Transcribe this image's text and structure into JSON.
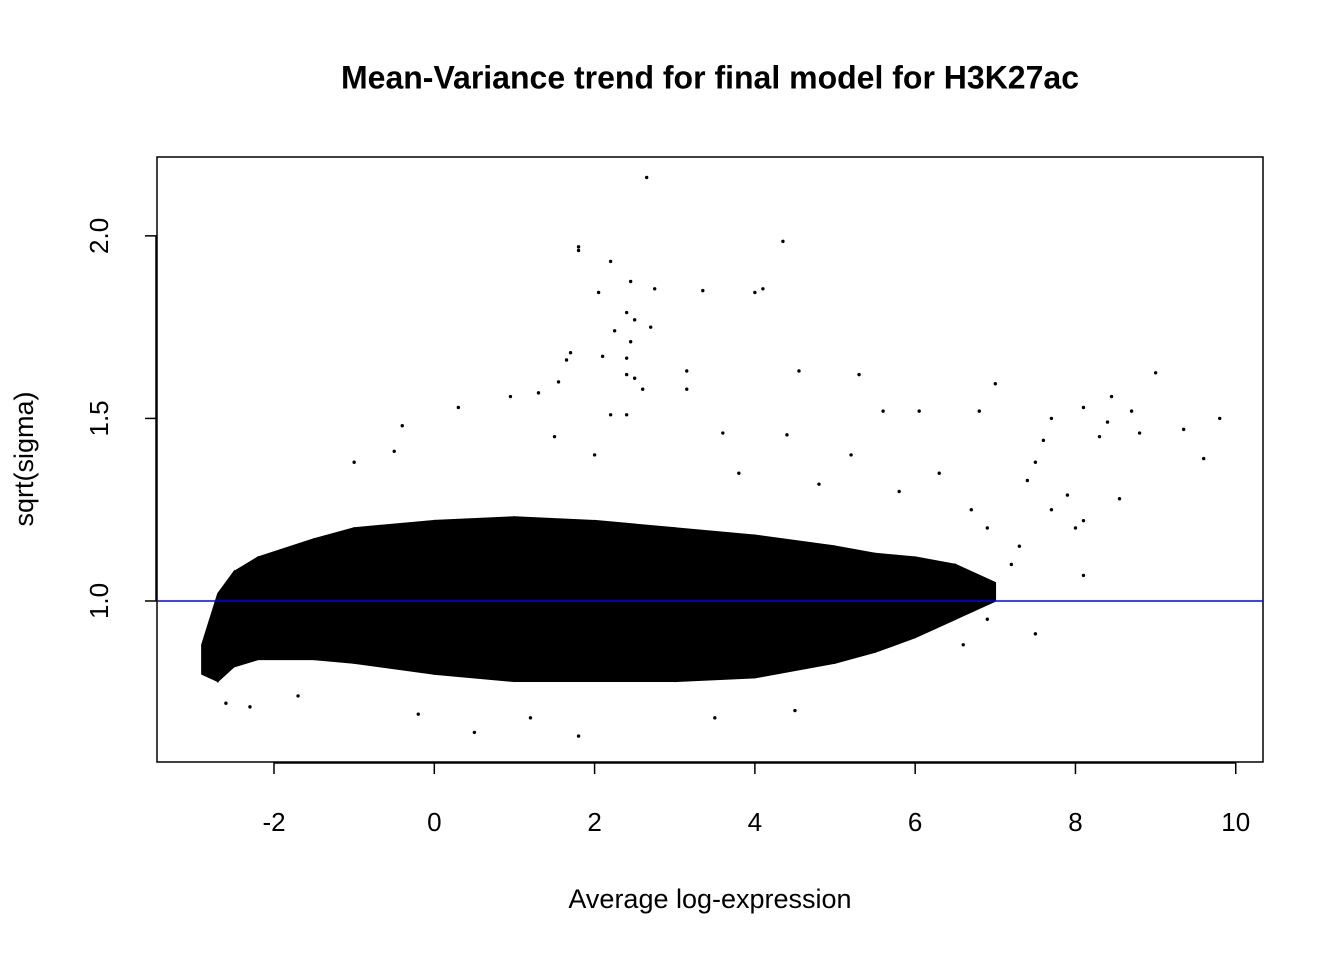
{
  "chart_data": {
    "type": "scatter",
    "title": "Mean-Variance trend for final model for H3K27ac",
    "x_label": "Average log-expression",
    "y_label": "sqrt(sigma)",
    "xlim": [
      -3.46,
      10.34
    ],
    "ylim": [
      0.559,
      2.216
    ],
    "xticks": [
      -2,
      0,
      2,
      4,
      6,
      8,
      10
    ],
    "yticks": [
      {
        "value": 1,
        "label": "1.0"
      },
      1.5,
      {
        "value": 2,
        "label": "2.0"
      }
    ],
    "color": "#000000",
    "x": [
      2.65,
      1.8,
      1.8,
      4.35,
      2.2,
      2.05,
      2.45,
      2.75,
      3.35,
      4.0,
      4.1,
      2.4,
      2.5,
      2.25,
      2.7,
      2.45,
      2.4,
      1.7,
      1.65,
      2.1,
      2.4,
      2.5,
      3.15,
      4.55,
      5.3,
      9.0,
      1.55,
      2.6,
      3.15,
      7.0,
      8.45,
      1.3,
      0.95,
      2.2,
      2.4,
      3.6,
      4.4,
      5.6,
      6.05,
      6.8,
      7.7,
      8.1,
      8.4,
      8.7,
      9.35,
      9.8,
      8.8,
      7.6,
      8.3,
      9.6,
      8.55,
      7.9,
      8.1,
      8.0,
      7.7,
      7.4,
      7.5,
      8.1,
      7.5,
      0.3,
      -0.4,
      -1.0,
      -0.5,
      -2.6,
      -2.3,
      -1.7,
      0.5,
      1.8,
      -0.2,
      1.2,
      3.5,
      4.5,
      6.6,
      6.9,
      7.2,
      7.3,
      6.9,
      6.7,
      5.8,
      4.8,
      3.8,
      2.0,
      1.5,
      5.2,
      6.3
    ],
    "values": [
      2.16,
      1.97,
      1.96,
      1.985,
      1.93,
      1.845,
      1.875,
      1.855,
      1.85,
      1.845,
      1.855,
      1.79,
      1.77,
      1.74,
      1.75,
      1.71,
      1.665,
      1.68,
      1.66,
      1.67,
      1.62,
      1.61,
      1.63,
      1.63,
      1.62,
      1.625,
      1.6,
      1.58,
      1.58,
      1.595,
      1.56,
      1.57,
      1.56,
      1.51,
      1.51,
      1.46,
      1.455,
      1.52,
      1.52,
      1.52,
      1.5,
      1.53,
      1.49,
      1.52,
      1.47,
      1.5,
      1.46,
      1.44,
      1.45,
      1.39,
      1.28,
      1.29,
      1.22,
      1.2,
      1.25,
      1.33,
      1.38,
      1.07,
      0.91,
      1.53,
      1.48,
      1.38,
      1.41,
      0.72,
      0.71,
      0.74,
      0.64,
      0.63,
      0.69,
      0.68,
      0.68,
      0.7,
      0.88,
      0.95,
      1.1,
      1.15,
      1.2,
      1.25,
      1.3,
      1.32,
      1.35,
      1.4,
      1.45,
      1.4,
      1.35
    ],
    "band": {
      "x": [
        -2.9,
        -2.7,
        -2.5,
        -2.2,
        -1.5,
        -1,
        0,
        1,
        2,
        3,
        4,
        5,
        5.5,
        6,
        6.5,
        7
      ],
      "upper": [
        0.88,
        1.02,
        1.08,
        1.12,
        1.17,
        1.2,
        1.22,
        1.23,
        1.22,
        1.2,
        1.18,
        1.15,
        1.13,
        1.12,
        1.1,
        1.05
      ],
      "lower": [
        0.8,
        0.78,
        0.82,
        0.84,
        0.84,
        0.83,
        0.8,
        0.78,
        0.78,
        0.78,
        0.79,
        0.83,
        0.86,
        0.9,
        0.95,
        1.0
      ]
    },
    "hline": {
      "value": 1.0,
      "color": "#0000ff"
    }
  }
}
